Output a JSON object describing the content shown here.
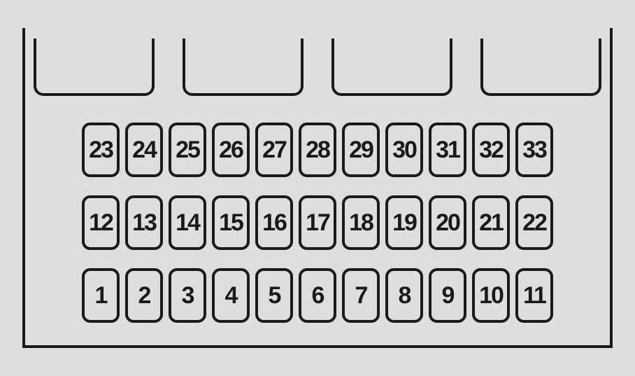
{
  "diagram": {
    "type": "fuse-box-layout",
    "background_color": "#dedede",
    "line_color": "#1a1a1a",
    "line_width": 4,
    "box_border_radius": 12,
    "font_size": 34,
    "font_weight": "bold",
    "top_slot_count": 4,
    "rows": [
      {
        "labels": [
          "23",
          "24",
          "25",
          "26",
          "27",
          "28",
          "29",
          "30",
          "31",
          "32",
          "33"
        ]
      },
      {
        "labels": [
          "12",
          "13",
          "14",
          "15",
          "16",
          "17",
          "18",
          "19",
          "20",
          "21",
          "22"
        ]
      },
      {
        "labels": [
          "1",
          "2",
          "3",
          "4",
          "5",
          "6",
          "7",
          "8",
          "9",
          "10",
          "11"
        ]
      }
    ]
  }
}
